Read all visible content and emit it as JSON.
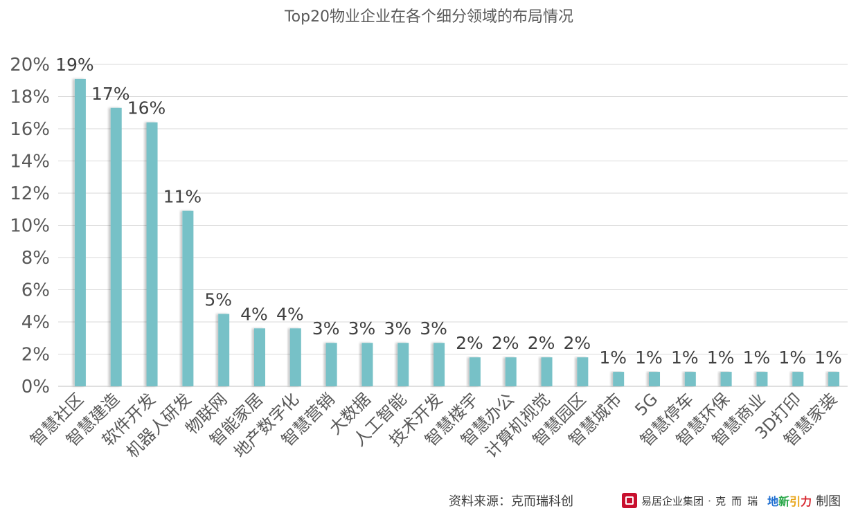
{
  "chart_data": {
    "type": "bar",
    "title": "Top20物业企业在各个细分领域的布局情况",
    "xlabel": "",
    "ylabel": "",
    "categories": [
      "智慧社区",
      "智慧建造",
      "软件开发",
      "机器人研发",
      "物联网",
      "智能家居",
      "地产数字化",
      "智慧营销",
      "大数据",
      "人工智能",
      "技术开发",
      "智慧楼宇",
      "智慧办公",
      "计算机视觉",
      "智慧园区",
      "智慧城市",
      "5G",
      "智慧停车",
      "智慧环保",
      "智慧商业",
      "3D打印",
      "智慧家装"
    ],
    "values": [
      19.1,
      17.3,
      16.4,
      10.9,
      4.5,
      3.6,
      3.6,
      2.7,
      2.7,
      2.7,
      2.7,
      1.8,
      1.8,
      1.8,
      1.8,
      0.9,
      0.9,
      0.9,
      0.9,
      0.9,
      0.9,
      0.9
    ],
    "data_labels": [
      "19%",
      "17%",
      "16%",
      "11%",
      "5%",
      "4%",
      "4%",
      "3%",
      "3%",
      "3%",
      "3%",
      "2%",
      "2%",
      "2%",
      "2%",
      "1%",
      "1%",
      "1%",
      "1%",
      "1%",
      "1%",
      "1%"
    ],
    "y_ticks": [
      "0%",
      "2%",
      "4%",
      "6%",
      "8%",
      "10%",
      "12%",
      "14%",
      "16%",
      "18%",
      "20%"
    ],
    "ylim": [
      0,
      20
    ],
    "grid": true,
    "legend": "none",
    "bar_color": "#77c1c7"
  },
  "footer": {
    "source": "资料来源：克而瑞科创",
    "brand_name": "易居企业集团",
    "brand_sep": "·",
    "brand_kr": "克而瑞",
    "brand_dyl": [
      "地",
      "新",
      "引",
      "力"
    ],
    "made": "制图"
  }
}
